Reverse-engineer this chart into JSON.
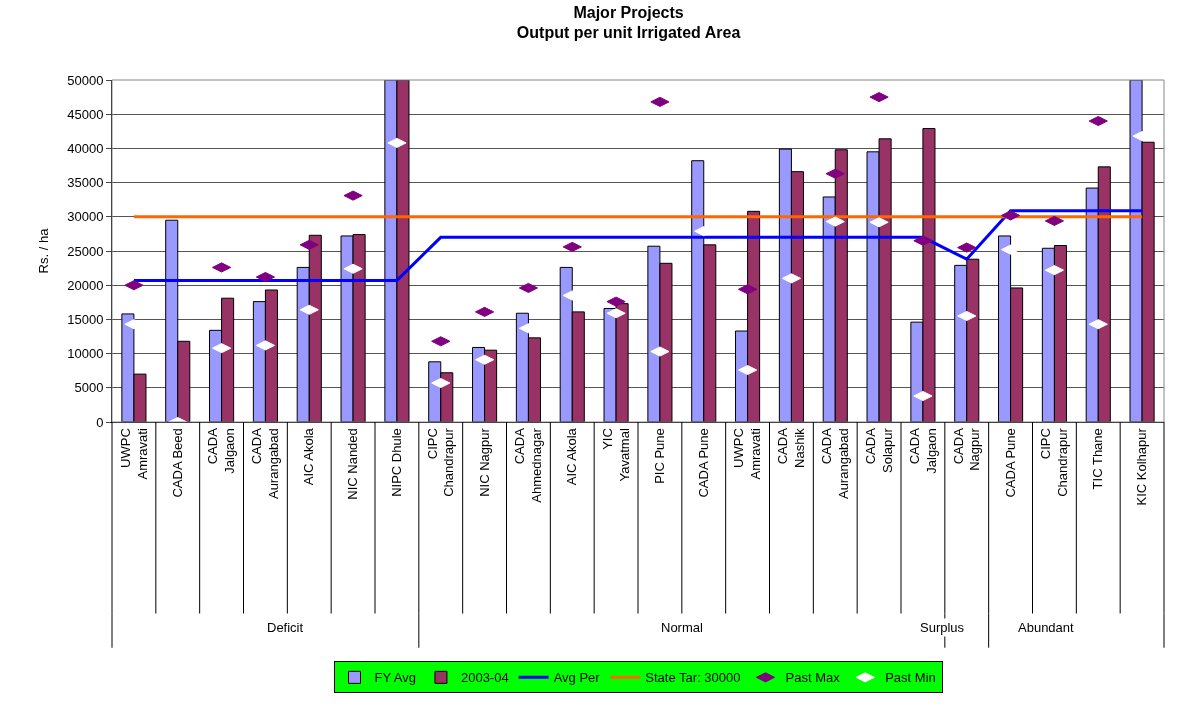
{
  "chart_data": {
    "type": "bar",
    "title": "Major Projects\nOutput per unit Irrigated Area",
    "ylabel": "Rs. / ha",
    "categories": [
      "UWPC\nAmravati",
      "CADA Beed",
      "CADA\nJalgaon",
      "CADA\nAurangabad",
      "AIC Akola",
      "NIC Nanded",
      "NIPC Dhule",
      "CIPC\nChandrapur",
      "NIC Nagpur",
      "CADA\nAhmednagar",
      "AIC Akola",
      "YIC\nYavatmal",
      "PIC Pune",
      "CADA Pune",
      "UWPC\nAmravati",
      "CADA\nNashik",
      "CADA\nAurangabad",
      "CADA\nSolapur",
      "CADA\nJalgaon",
      "CADA\nNagpur",
      "CADA Pune",
      "CIPC\nChandrapur",
      "TIC Thane",
      "KIC Kolhapur"
    ],
    "series": [
      {
        "name": "FY Avg",
        "color": "#9999ff",
        "values": [
          15800,
          29500,
          13400,
          17600,
          22600,
          27200,
          50000,
          8800,
          10900,
          15900,
          22600,
          16600,
          25700,
          38200,
          13300,
          39900,
          32900,
          39500,
          14600,
          22900,
          27200,
          25400,
          34200,
          50000
        ]
      },
      {
        "name": "2003-04",
        "color": "#993366",
        "values": [
          7000,
          11800,
          18100,
          19300,
          27300,
          27400,
          50000,
          7200,
          10500,
          12300,
          16100,
          17300,
          23200,
          25900,
          30800,
          36600,
          39800,
          41400,
          42900,
          23800,
          19600,
          25800,
          37300,
          40900
        ]
      },
      {
        "name": "Avg Per",
        "type": "line",
        "color": "#0000ff",
        "values": [
          20700,
          20700,
          20700,
          20700,
          20700,
          20700,
          20700,
          27000,
          27000,
          27000,
          27000,
          27000,
          27000,
          27000,
          27000,
          27000,
          27000,
          27000,
          27000,
          23800,
          30900,
          30900,
          30900,
          30900
        ]
      },
      {
        "name": "State Tar: 30000",
        "type": "line",
        "color": "#ff6600",
        "values": [
          30000,
          30000,
          30000,
          30000,
          30000,
          30000,
          30000,
          30000,
          30000,
          30000,
          30000,
          30000,
          30000,
          30000,
          30000,
          30000,
          30000,
          30000,
          30000,
          30000,
          30000,
          30000,
          30000,
          30000
        ]
      },
      {
        "name": "Past Max",
        "type": "scatter",
        "color": "#800080",
        "values": [
          20000,
          null,
          22600,
          21200,
          25900,
          33100,
          null,
          11800,
          16100,
          19600,
          25600,
          17600,
          46800,
          null,
          19400,
          null,
          36300,
          47500,
          26500,
          25500,
          30200,
          29400,
          44000,
          null
        ]
      },
      {
        "name": "Past Min",
        "type": "scatter",
        "color": "#ffffff",
        "values": [
          14300,
          0,
          10800,
          11200,
          16400,
          22400,
          40800,
          5700,
          9100,
          13700,
          18500,
          15900,
          10300,
          27900,
          7600,
          21000,
          29300,
          29200,
          3800,
          15500,
          25200,
          22200,
          14300,
          41800
        ]
      }
    ],
    "annotations": [
      "Deficit",
      "Normal",
      "Surplus",
      "Abundant"
    ],
    "ylim": [
      0,
      50000
    ],
    "yticks": [
      0,
      5000,
      10000,
      15000,
      20000,
      25000,
      30000,
      35000,
      40000,
      45000,
      50000
    ],
    "grid": "y",
    "legend": "bottom"
  }
}
